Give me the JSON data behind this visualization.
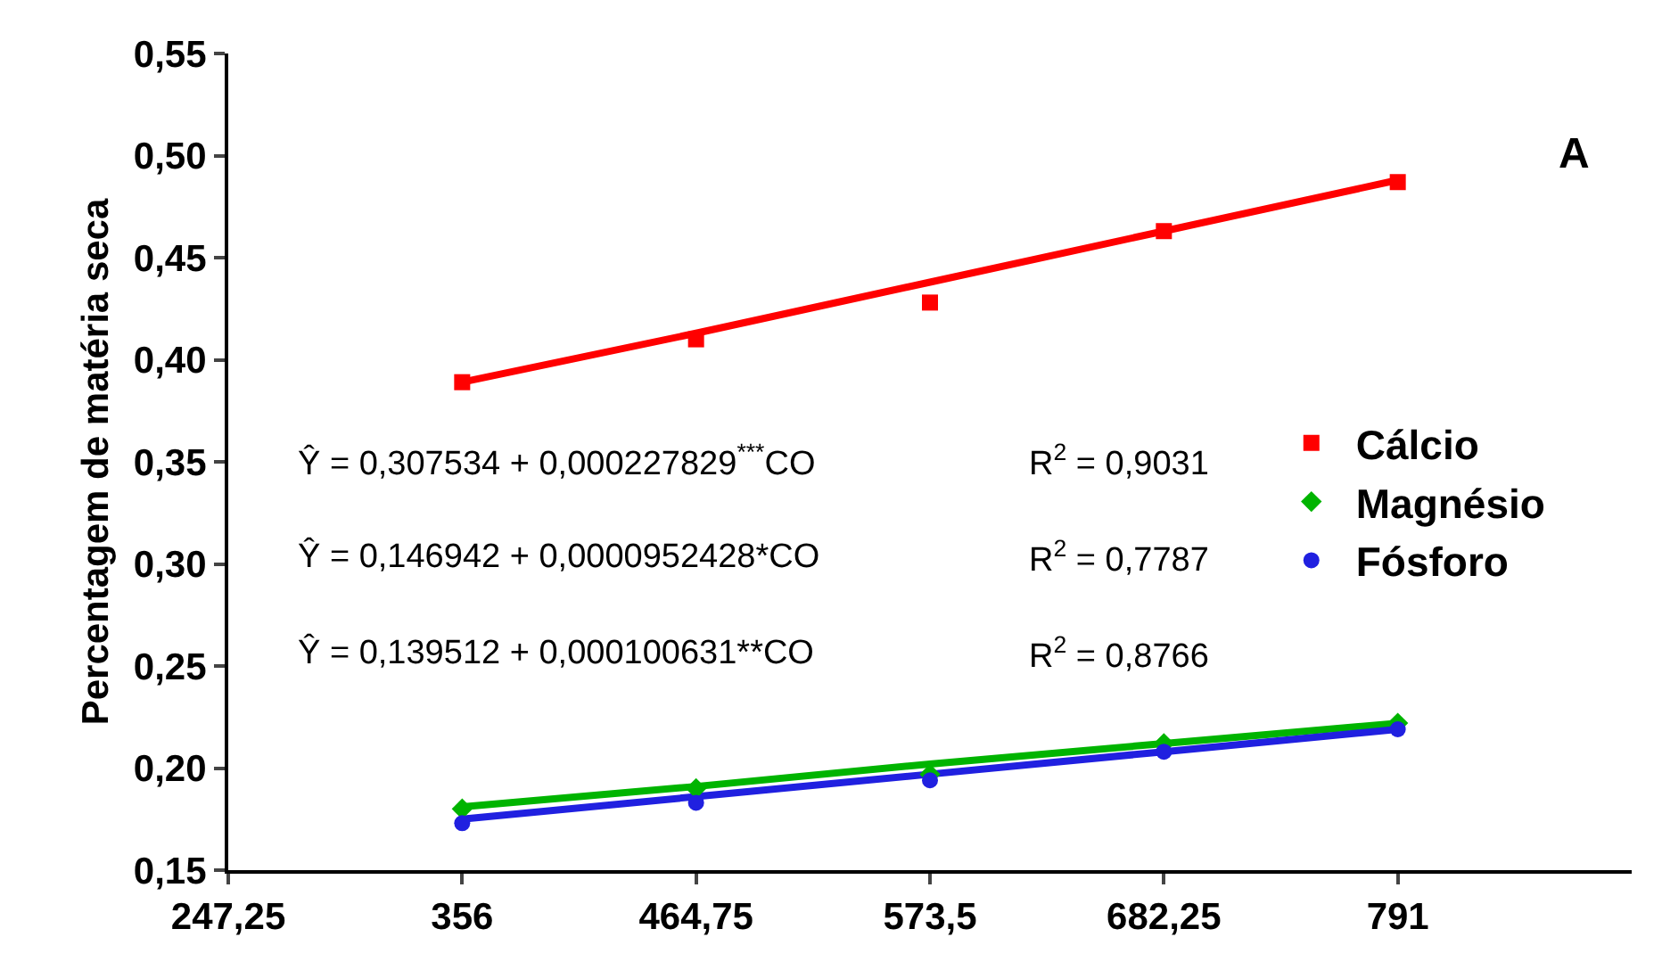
{
  "chart_data": {
    "type": "scatter",
    "ylabel": "Percentagem de matéria seca",
    "x": [
      356,
      464.75,
      573.5,
      682.25,
      791
    ],
    "series": [
      {
        "name": "Cálcio",
        "color": "#ff0000",
        "marker": "square",
        "values": [
          0.389,
          0.41,
          0.428,
          0.463,
          0.487
        ]
      },
      {
        "name": "Magnésio",
        "color": "#00b400",
        "marker": "diamond",
        "values": [
          0.18,
          0.19,
          0.197,
          0.212,
          0.222
        ]
      },
      {
        "name": "Fósforo",
        "color": "#2020e0",
        "marker": "circle",
        "values": [
          0.173,
          0.183,
          0.194,
          0.208,
          0.219
        ]
      },
      {
        "type": "line",
        "color": "#ff0000",
        "values": [
          0.389,
          0.413,
          0.438,
          0.463,
          0.488
        ]
      },
      {
        "type": "line",
        "color": "#00b400",
        "values": [
          0.181,
          0.191,
          0.202,
          0.212,
          0.222
        ]
      },
      {
        "type": "line",
        "color": "#2020e0",
        "values": [
          0.175,
          0.186,
          0.197,
          0.208,
          0.219
        ]
      }
    ],
    "xlim": [
      247.25,
      899.75
    ],
    "xticks": [
      {
        "value": 247.25,
        "label": "247,25"
      },
      356,
      {
        "value": 464.75,
        "label": "464,75"
      },
      {
        "value": 573.5,
        "label": "573,5"
      },
      {
        "value": 682.25,
        "label": "682,25"
      },
      791
    ],
    "ylim": [
      0.15,
      0.55
    ],
    "yticks": [
      {
        "value": 0.15,
        "label": "0,15"
      },
      {
        "value": 0.2,
        "label": "0,20"
      },
      {
        "value": 0.25,
        "label": "0,25"
      },
      {
        "value": 0.3,
        "label": "0,30"
      },
      {
        "value": 0.35,
        "label": "0,35"
      },
      {
        "value": 0.4,
        "label": "0,40"
      },
      {
        "value": 0.45,
        "label": "0,45"
      },
      {
        "value": 0.5,
        "label": "0,50"
      },
      {
        "value": 0.55,
        "label": "0,55"
      }
    ],
    "legend": "right",
    "annotations": [
      "A",
      "Ŷ = 0,307534 + 0,000227829$^{***}$CO",
      "R$^{2}$ = 0,9031",
      "Ŷ = 0,146942 + 0,0000952428*CO",
      "R$^{2}$ = 0,7787",
      "Ŷ = 0,139512 + 0,000100631**CO",
      "R$^{2}$ = 0,8766"
    ]
  }
}
